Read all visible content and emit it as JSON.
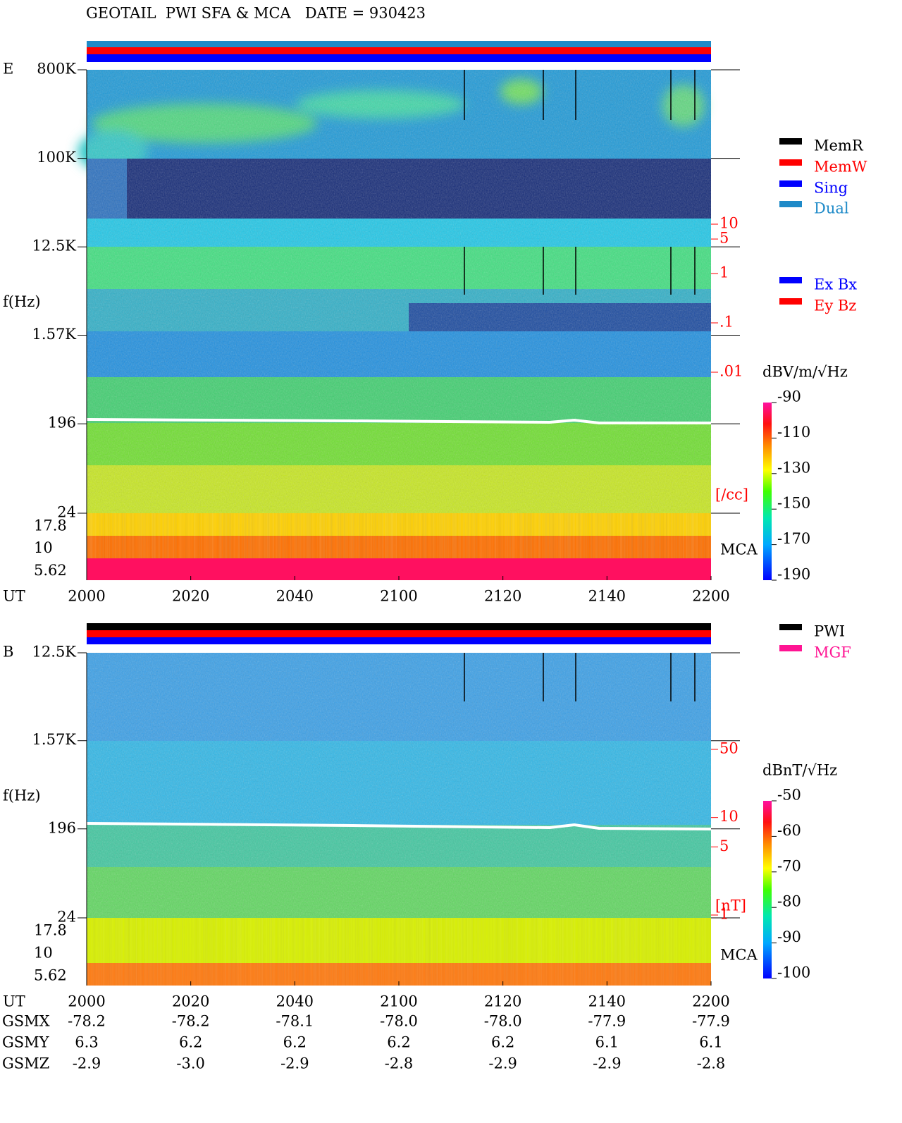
{
  "chart_data": [
    {
      "type": "spectrogram",
      "title": "GEOTAIL  PWI SFA & MCA   DATE = 930423",
      "panel_label": "E",
      "ylabel": "f(Hz)",
      "xlabel": "UT",
      "yscale": "log",
      "ylim": [
        24,
        800000
      ],
      "yticks": [
        {
          "value": 800000,
          "label": "800K"
        },
        {
          "value": 100000,
          "label": "100K"
        },
        {
          "value": 12500,
          "label": "12.5K"
        },
        {
          "value": 1570,
          "label": "1.57K"
        },
        196,
        24
      ],
      "mca_label": "MCA",
      "mca_ticks": [
        17.8,
        10,
        5.62
      ],
      "categories": [
        "2000",
        "2020",
        "2040",
        "2100",
        "2120",
        "2140",
        "2200"
      ],
      "y2label": "[/cc]",
      "y2scale": "log",
      "y2lim": [
        0.01,
        10
      ],
      "y2color": "#ff0000",
      "y2ticks": [
        10,
        5,
        1,
        {
          "value": 0.1,
          "label": ".1"
        },
        {
          "value": 0.01,
          "label": ".01"
        }
      ],
      "colorbar": {
        "label": "dBV/m/√Hz",
        "lim": [
          -190,
          -90
        ],
        "ticks": [
          -90,
          -110,
          -130,
          -150,
          -170,
          -190
        ]
      },
      "legends": [
        [
          {
            "name": "MemR",
            "color": "#000000"
          },
          {
            "name": "MemW",
            "color": "#ff0000"
          },
          {
            "name": "Sing",
            "color": "#0000ff"
          },
          {
            "name": "Dual",
            "color": "#1e8ac8"
          }
        ],
        [
          {
            "name": "Ex Bx",
            "color": "#0000ff"
          },
          {
            "name": "Ey Bz",
            "color": "#ff0000"
          }
        ]
      ]
    },
    {
      "type": "spectrogram",
      "panel_label": "B",
      "ylabel": "f(Hz)",
      "xlabel": "UT",
      "yscale": "log",
      "ylim": [
        24,
        12500
      ],
      "yticks": [
        {
          "value": 12500,
          "label": "12.5K"
        },
        {
          "value": 1570,
          "label": "1.57K"
        },
        196,
        24
      ],
      "mca_label": "MCA",
      "mca_ticks": [
        17.8,
        10,
        5.62
      ],
      "categories": [
        "2000",
        "2020",
        "2040",
        "2100",
        "2120",
        "2140",
        "2200"
      ],
      "y2label": "[nT]",
      "y2scale": "log",
      "y2lim": [
        1,
        50
      ],
      "y2color": "#ff0000",
      "y2ticks": [
        50,
        10,
        5,
        1
      ],
      "colorbar": {
        "label": "dBnT/√Hz",
        "lim": [
          -100,
          -50
        ],
        "ticks": [
          -50,
          -60,
          -70,
          -80,
          -90,
          -100
        ]
      },
      "legends": [
        [
          {
            "name": "PWI",
            "color": "#000000"
          },
          {
            "name": "MGF",
            "color": "#ff1493"
          }
        ]
      ]
    }
  ],
  "ephemeris": {
    "rows": [
      {
        "label": "GSMX",
        "values": [
          "-78.2",
          "-78.2",
          "-78.1",
          "-78.0",
          "-78.0",
          "-77.9",
          "-77.9"
        ]
      },
      {
        "label": "GSMY",
        "values": [
          "6.3",
          "6.2",
          "6.2",
          "6.2",
          "6.2",
          "6.1",
          "6.1"
        ]
      },
      {
        "label": "GSMZ",
        "values": [
          "-2.9",
          "-3.0",
          "-2.9",
          "-2.8",
          "-2.9",
          "-2.9",
          "-2.8"
        ]
      }
    ]
  }
}
